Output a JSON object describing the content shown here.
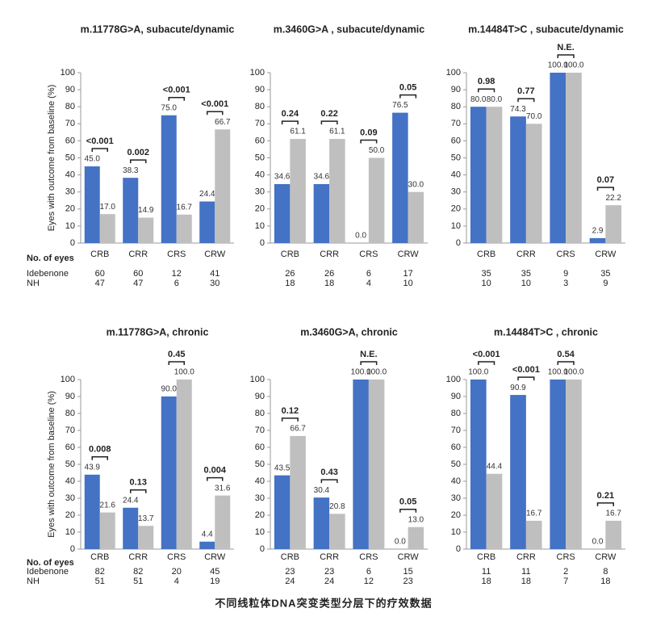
{
  "chart_data": [
    {
      "type": "bar",
      "title": "m.11778G>A, subacute/dynamic",
      "y_label": "Eyes with outcome from baseline (%)",
      "counts_label": "No. of eyes",
      "categories": [
        "CRB",
        "CRR",
        "CRS",
        "CRW"
      ],
      "p_values": [
        "<0.001",
        "0.002",
        "<0.001",
        "<0.001"
      ],
      "series": [
        {
          "name": "Idebenone",
          "color": "#4472c4",
          "values": [
            45.0,
            38.3,
            75.0,
            24.4
          ],
          "value_labels": [
            "45.0",
            "38.3",
            "75.0",
            "24.4"
          ],
          "counts": [
            60,
            60,
            12,
            41
          ]
        },
        {
          "name": "NH",
          "color": "#bfbfbf",
          "values": [
            17.0,
            14.9,
            16.7,
            66.7
          ],
          "value_labels": [
            "17.0",
            "14.9",
            "16.7",
            "66.7"
          ],
          "counts": [
            47,
            47,
            6,
            30
          ]
        }
      ],
      "ylim": [
        0,
        100
      ],
      "yticks": [
        0,
        10,
        20,
        30,
        40,
        50,
        60,
        70,
        80,
        90,
        100
      ]
    },
    {
      "type": "bar",
      "title": "m.3460G>A , subacute/dynamic",
      "categories": [
        "CRB",
        "CRR",
        "CRS",
        "CRW"
      ],
      "p_values": [
        "0.24",
        "0.22",
        "0.09",
        "0.05"
      ],
      "series": [
        {
          "color": "#4472c4",
          "values": [
            34.6,
            34.6,
            0.0,
            76.5
          ],
          "value_labels": [
            "34.6",
            "34.6",
            "0.0",
            "76.5"
          ],
          "counts": [
            26,
            26,
            6,
            17
          ]
        },
        {
          "color": "#bfbfbf",
          "values": [
            61.1,
            61.1,
            50.0,
            30.0
          ],
          "value_labels": [
            "61.1",
            "61.1",
            "50.0",
            "30.0"
          ],
          "counts": [
            18,
            18,
            4,
            10
          ]
        }
      ],
      "ylim": [
        0,
        100
      ],
      "yticks": [
        0,
        10,
        20,
        30,
        40,
        50,
        60,
        70,
        80,
        90,
        100
      ]
    },
    {
      "type": "bar",
      "title": "m.14484T>C , subacute/dynamic",
      "categories": [
        "CRB",
        "CRR",
        "CRS",
        "CRW"
      ],
      "p_values": [
        "0.98",
        "0.77",
        "N.E.",
        "0.07"
      ],
      "series": [
        {
          "color": "#4472c4",
          "values": [
            80.0,
            74.3,
            100.0,
            2.9
          ],
          "value_labels": [
            "80.0",
            "74.3",
            "100.0",
            "2.9"
          ],
          "counts": [
            35,
            35,
            9,
            35
          ]
        },
        {
          "color": "#bfbfbf",
          "values": [
            80.0,
            70.0,
            100.0,
            22.2
          ],
          "value_labels": [
            "80.0",
            "70.0",
            "100.0",
            "22.2"
          ],
          "counts": [
            10,
            10,
            3,
            9
          ]
        }
      ],
      "ylim": [
        0,
        100
      ],
      "yticks": [
        0,
        10,
        20,
        30,
        40,
        50,
        60,
        70,
        80,
        90,
        100
      ]
    },
    {
      "type": "bar",
      "title": "m.11778G>A, chronic",
      "y_label": "Eyes with outcome from baseline (%)",
      "counts_label": "No. of eyes",
      "categories": [
        "CRB",
        "CRR",
        "CRS",
        "CRW"
      ],
      "p_values": [
        "0.008",
        "0.13",
        "0.45",
        "0.004"
      ],
      "series": [
        {
          "name": "Idebenone",
          "color": "#4472c4",
          "values": [
            43.9,
            24.4,
            90.0,
            4.4
          ],
          "value_labels": [
            "43.9",
            "24.4",
            "90.0",
            "4.4"
          ],
          "counts": [
            82,
            82,
            20,
            45
          ]
        },
        {
          "name": "NH",
          "color": "#bfbfbf",
          "values": [
            21.6,
            13.7,
            100.0,
            31.6
          ],
          "value_labels": [
            "21.6",
            "13.7",
            "100.0",
            "31.6"
          ],
          "counts": [
            51,
            51,
            4,
            19
          ]
        }
      ],
      "ylim": [
        0,
        100
      ],
      "yticks": [
        0,
        10,
        20,
        30,
        40,
        50,
        60,
        70,
        80,
        90,
        100
      ]
    },
    {
      "type": "bar",
      "title": "m.3460G>A, chronic",
      "categories": [
        "CRB",
        "CRR",
        "CRS",
        "CRW"
      ],
      "p_values": [
        "0.12",
        "0.43",
        "N.E.",
        "0.05"
      ],
      "series": [
        {
          "color": "#4472c4",
          "values": [
            43.5,
            30.4,
            100.0,
            0.0
          ],
          "value_labels": [
            "43.5",
            "30.4",
            "100.0",
            "0.0"
          ],
          "counts": [
            23,
            23,
            6,
            15
          ]
        },
        {
          "color": "#bfbfbf",
          "values": [
            66.7,
            20.8,
            100.0,
            13.0
          ],
          "value_labels": [
            "66.7",
            "20.8",
            "100.0",
            "13.0"
          ],
          "counts": [
            24,
            24,
            12,
            23
          ]
        }
      ],
      "ylim": [
        0,
        100
      ],
      "yticks": [
        0,
        10,
        20,
        30,
        40,
        50,
        60,
        70,
        80,
        90,
        100
      ]
    },
    {
      "type": "bar",
      "title": "m.14484T>C , chronic",
      "categories": [
        "CRB",
        "CRR",
        "CRS",
        "CRW"
      ],
      "p_values": [
        "<0.001",
        "<0.001",
        "0.54",
        "0.21"
      ],
      "series": [
        {
          "color": "#4472c4",
          "values": [
            100.0,
            90.9,
            100.0,
            0.0
          ],
          "value_labels": [
            "100.0",
            "90.9",
            "100.0",
            "0.0"
          ],
          "counts": [
            11,
            11,
            2,
            8
          ]
        },
        {
          "color": "#bfbfbf",
          "values": [
            44.4,
            16.7,
            100.0,
            16.7
          ],
          "value_labels": [
            "44.4",
            "16.7",
            "100.0",
            "16.7"
          ],
          "counts": [
            18,
            18,
            7,
            18
          ]
        }
      ],
      "ylim": [
        0,
        100
      ],
      "yticks": [
        0,
        10,
        20,
        30,
        40,
        50,
        60,
        70,
        80,
        90,
        100
      ]
    }
  ],
  "caption": "不同线粒体DNA突变类型分层下的疗效数据"
}
